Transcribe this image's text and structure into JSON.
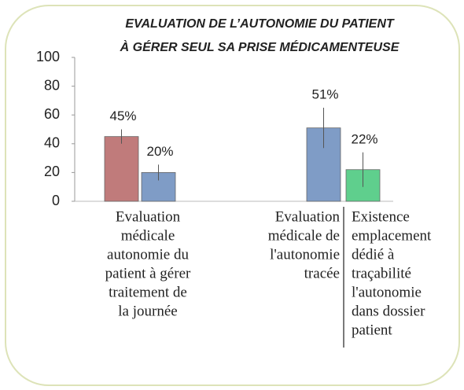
{
  "chart_data": {
    "type": "bar",
    "title": [
      "EVALUATION DE L’AUTONOMIE DU PATIENT",
      "À GÉRER SEUL SA PRISE MÉDICAMENTEUSE"
    ],
    "ylim": [
      0,
      100
    ],
    "yticks": [
      0,
      20,
      40,
      60,
      80,
      100
    ],
    "groups": [
      {
        "labels": [
          [
            "Evaluation",
            "médicale",
            "autonomie du",
            "patient à gérer",
            "traitement de",
            "la journée"
          ]
        ],
        "bars": [
          {
            "color": "#c07b7b",
            "value": 45,
            "error": 5,
            "value_label": "45%"
          },
          {
            "color": "#7f9cc6",
            "value": 20,
            "error": 5.5,
            "value_label": "20%"
          }
        ]
      },
      {
        "labels": [
          [
            "Evaluation",
            "médicale de",
            "l'autonomie",
            "tracée"
          ],
          [
            "Existence",
            "emplacement",
            "dédié à",
            "traçabilité",
            "l'autonomie",
            "dans dossier",
            "patient"
          ]
        ],
        "bars": [
          {
            "color": "#7f9cc6",
            "value": 51,
            "error": 14,
            "value_label": "51%"
          },
          {
            "color": "#5fcf8d",
            "value": 22,
            "error": 12,
            "value_label": "22%"
          }
        ]
      }
    ]
  }
}
